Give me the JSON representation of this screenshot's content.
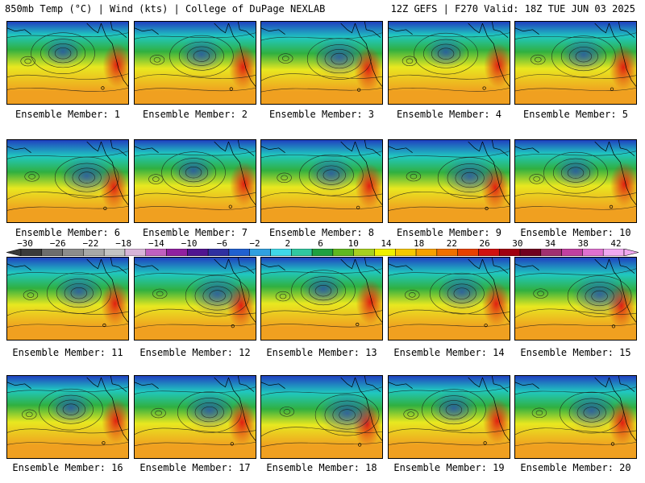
{
  "header": {
    "left_text": "850mb Temp (°C) | Wind (kts) | College of DuPage NEXLAB",
    "right_text": "12Z GEFS | F270 Valid: 18Z TUE JUN 03 2025"
  },
  "colorbar": {
    "ticks": [
      "−30",
      "−26",
      "−22",
      "−18",
      "−14",
      "−10",
      "−6",
      "−2",
      "2",
      "6",
      "10",
      "14",
      "18",
      "22",
      "26",
      "30",
      "34",
      "38",
      "42"
    ],
    "colors": [
      "#3a3a3a",
      "#6d6d6d",
      "#8c8c8c",
      "#a8a8a8",
      "#c4c4c4",
      "#d8b4d8",
      "#c060c0",
      "#9020a0",
      "#501490",
      "#3030a0",
      "#2060d0",
      "#30a0e0",
      "#40d8e8",
      "#30c8a0",
      "#20a040",
      "#60b820",
      "#a8d020",
      "#f0f000",
      "#f8c800",
      "#f8a000",
      "#f07000",
      "#e84000",
      "#d01010",
      "#a00010",
      "#700020",
      "#a03070",
      "#c040a0",
      "#e070d0",
      "#f0a8f0"
    ]
  },
  "map_colors": {
    "north_cold": "#2040c0",
    "mid": "#20c8c0",
    "green": "#30b040",
    "yellow": "#e8e820",
    "orange": "#f0a020",
    "west_hot": "#e02010"
  },
  "members": [
    {
      "label": "Ensemble Member: 1"
    },
    {
      "label": "Ensemble Member: 2"
    },
    {
      "label": "Ensemble Member: 3"
    },
    {
      "label": "Ensemble Member: 4"
    },
    {
      "label": "Ensemble Member: 5"
    },
    {
      "label": "Ensemble Member: 6"
    },
    {
      "label": "Ensemble Member: 7"
    },
    {
      "label": "Ensemble Member: 8"
    },
    {
      "label": "Ensemble Member: 9"
    },
    {
      "label": "Ensemble Member: 10"
    },
    {
      "label": "Ensemble Member: 11"
    },
    {
      "label": "Ensemble Member: 12"
    },
    {
      "label": "Ensemble Member: 13"
    },
    {
      "label": "Ensemble Member: 14"
    },
    {
      "label": "Ensemble Member: 15"
    },
    {
      "label": "Ensemble Member: 16"
    },
    {
      "label": "Ensemble Member: 17"
    },
    {
      "label": "Ensemble Member: 18"
    },
    {
      "label": "Ensemble Member: 19"
    },
    {
      "label": "Ensemble Member: 20"
    }
  ]
}
